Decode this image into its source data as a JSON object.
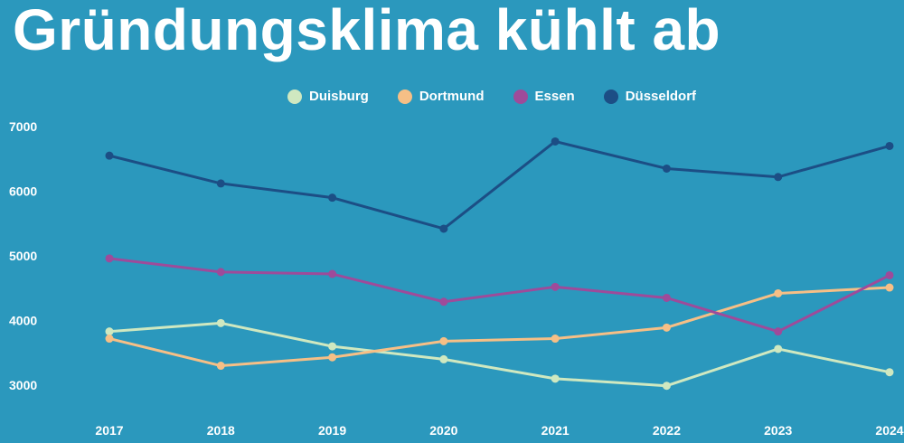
{
  "title": "Gründungsklima kühlt ab",
  "colors": {
    "background": "#2b98bd",
    "Duisburg": "#cfe8c0",
    "Dortmund": "#f6bf86",
    "Essen": "#9e4b9a",
    "Düsseldorf": "#1c4e85"
  },
  "chart_data": {
    "type": "line",
    "title": "Gründungsklima kühlt ab",
    "xlabel": "",
    "ylabel": "",
    "x": [
      "2017",
      "2018",
      "2019",
      "2020",
      "2021",
      "2022",
      "2023",
      "2024"
    ],
    "ylim": [
      2650,
      7200
    ],
    "yticks": [
      "3000",
      "4000",
      "5000",
      "6000",
      "7000"
    ],
    "grid": false,
    "legend": "top-center",
    "series": [
      {
        "name": "Duisburg",
        "values": [
          3830,
          3960,
          3600,
          3400,
          3100,
          2990,
          3560,
          3200
        ]
      },
      {
        "name": "Dortmund",
        "values": [
          3720,
          3300,
          3430,
          3680,
          3720,
          3890,
          4420,
          4510
        ]
      },
      {
        "name": "Essen",
        "values": [
          4960,
          4750,
          4720,
          4290,
          4520,
          4350,
          3830,
          4700
        ]
      },
      {
        "name": "Düsseldorf",
        "values": [
          6550,
          6120,
          5900,
          5420,
          6770,
          6350,
          6220,
          6700
        ]
      }
    ]
  }
}
